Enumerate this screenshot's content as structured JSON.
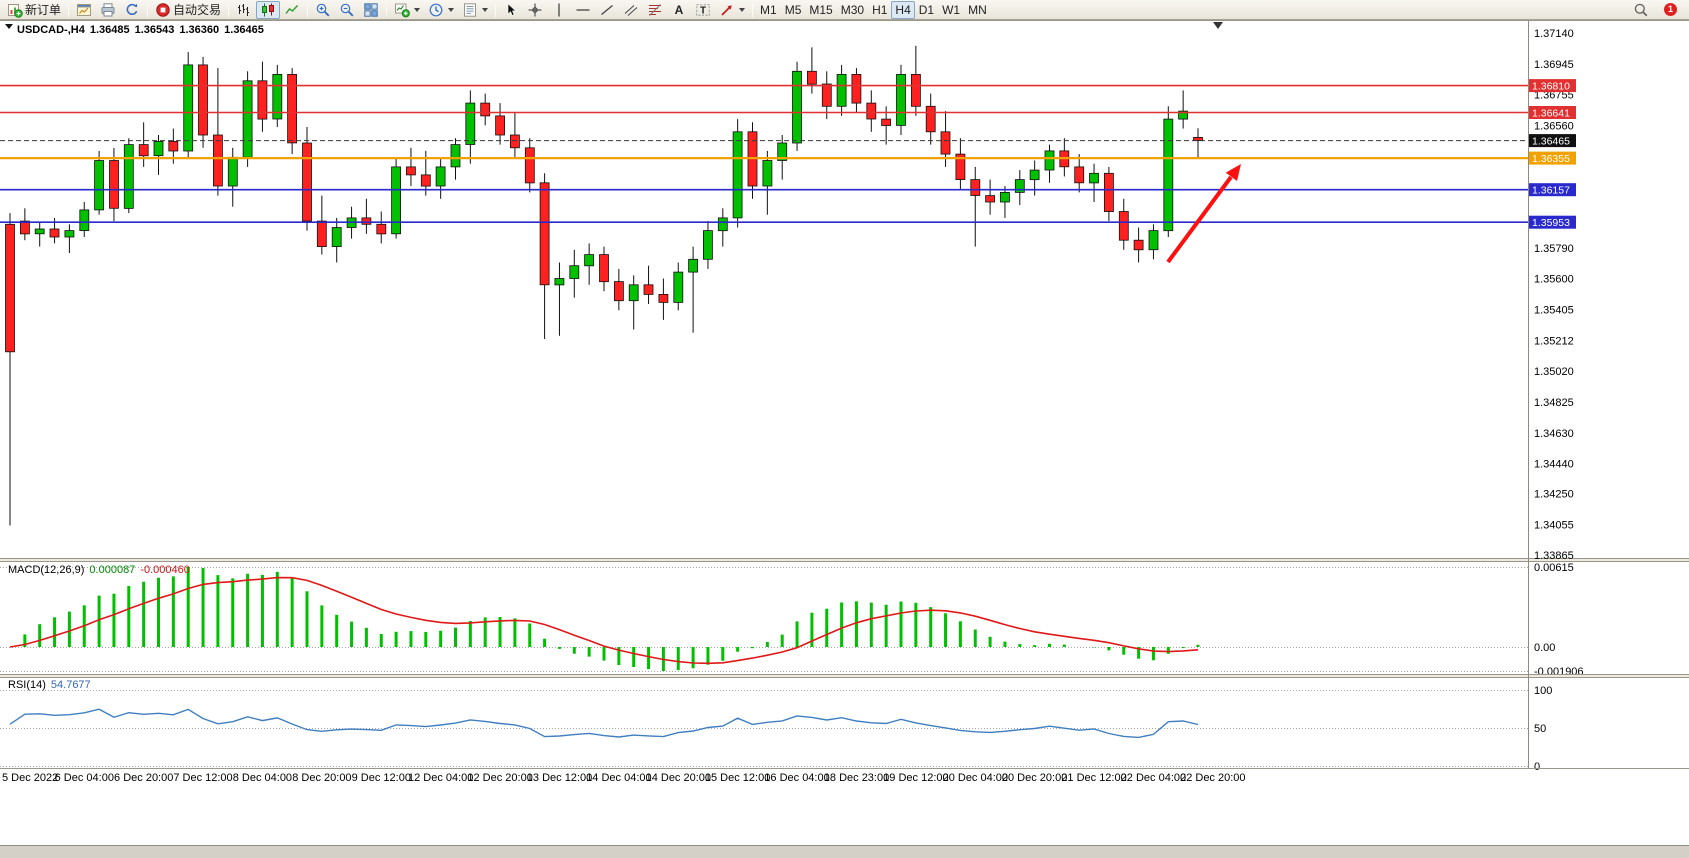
{
  "toolbar": {
    "left": [
      {
        "name": "new-order-button",
        "icon": "new-order",
        "label": "新订单"
      },
      {
        "type": "sep"
      },
      {
        "name": "charts-button",
        "icon": "charts"
      },
      {
        "name": "print-button",
        "icon": "print"
      },
      {
        "name": "refresh-button",
        "icon": "refresh"
      },
      {
        "type": "sep"
      },
      {
        "name": "autotrading-button",
        "icon": "autotrading",
        "label": "自动交易"
      },
      {
        "type": "sep"
      },
      {
        "name": "bar-chart-button",
        "icon": "bars"
      },
      {
        "name": "candlestick-chart-button",
        "icon": "candles",
        "active": true
      },
      {
        "name": "line-chart-button",
        "icon": "line"
      },
      {
        "type": "sep"
      },
      {
        "name": "zoom-in-button",
        "icon": "zoom-in"
      },
      {
        "name": "zoom-out-button",
        "icon": "zoom-out"
      },
      {
        "name": "tile-windows-button",
        "icon": "tile"
      },
      {
        "type": "sep"
      },
      {
        "name": "indicators-button",
        "icon": "indicators",
        "caret": true
      },
      {
        "name": "periods-button",
        "icon": "clock",
        "caret": true
      },
      {
        "name": "templates-button",
        "icon": "template",
        "caret": true
      },
      {
        "type": "sep"
      },
      {
        "name": "cursor-button",
        "icon": "cursor"
      },
      {
        "name": "crosshair-button",
        "icon": "crosshair"
      },
      {
        "name": "vertical-line-button",
        "icon": "vline"
      },
      {
        "name": "horizontal-line-button",
        "icon": "hline"
      },
      {
        "name": "trendline-button",
        "icon": "trendline"
      },
      {
        "name": "equidistant-channel-button",
        "icon": "channel"
      },
      {
        "name": "fibonacci-button",
        "icon": "fibo"
      },
      {
        "name": "text-button",
        "icon": "text"
      },
      {
        "name": "text-label-button",
        "icon": "label"
      },
      {
        "name": "arrows-button",
        "icon": "arrows",
        "caret": true
      },
      {
        "type": "sep"
      },
      {
        "name": "timeframe-m1",
        "label": "M1"
      },
      {
        "name": "timeframe-m5",
        "label": "M5"
      },
      {
        "name": "timeframe-m15",
        "label": "M15"
      },
      {
        "name": "timeframe-m30",
        "label": "M30"
      },
      {
        "name": "timeframe-h1",
        "label": "H1"
      },
      {
        "name": "timeframe-h4",
        "label": "H4",
        "active": true
      },
      {
        "name": "timeframe-d1",
        "label": "D1"
      },
      {
        "name": "timeframe-w1",
        "label": "W1"
      },
      {
        "name": "timeframe-mn",
        "label": "MN"
      }
    ],
    "right": [
      {
        "name": "search-button",
        "icon": "magnifier"
      },
      {
        "name": "notification-badge",
        "badge": "1"
      }
    ]
  },
  "chart": {
    "header": {
      "symbol": "USDCAD-,H4",
      "open": "1.36485",
      "high": "1.36543",
      "low": "1.36360",
      "close": "1.36465"
    },
    "price_axis_labels": [
      "1.37140",
      "1.36945",
      "1.36755",
      "1.36560",
      "1.35790",
      "1.35600",
      "1.35405",
      "1.35212",
      "1.35020",
      "1.34825",
      "1.34630",
      "1.34440",
      "1.34250",
      "1.34055",
      "1.33865"
    ],
    "price_tags": [
      {
        "name": "resistance-line-1",
        "label": "1.36810",
        "bg": "#e03030",
        "line_color": "#e03030",
        "line_width": 1.6
      },
      {
        "name": "resistance-line-2",
        "label": "1.36641",
        "bg": "#e03030",
        "line_color": "#e03030",
        "line_width": 1.6
      },
      {
        "name": "current-price-line",
        "label": "1.36465",
        "bg": "#101010",
        "line_color": "#3a3a3a",
        "line_width": 1,
        "dashed": true
      },
      {
        "name": "pivot-line",
        "label": "1.36355",
        "bg": "#f2a200",
        "line_color": "#f2a200",
        "line_width": 2.2
      },
      {
        "name": "support-line-1",
        "label": "1.36157",
        "bg": "#2929cc",
        "line_color": "#2929cc",
        "line_width": 1.6
      },
      {
        "name": "support-line-2",
        "label": "1.35953",
        "bg": "#2929cc",
        "line_color": "#2929cc",
        "line_width": 1.6
      }
    ],
    "time_axis_labels": [
      "5 Dec 2022",
      "6 Dec 04:00",
      "6 Dec 20:00",
      "7 Dec 12:00",
      "8 Dec 04:00",
      "8 Dec 20:00",
      "9 Dec 12:00",
      "12 Dec 04:00",
      "12 Dec 20:00",
      "13 Dec 12:00",
      "14 Dec 04:00",
      "14 Dec 20:00",
      "15 Dec 12:00",
      "16 Dec 04:00",
      "18 Dec 23:00",
      "19 Dec 12:00",
      "20 Dec 04:00",
      "20 Dec 20:00",
      "21 Dec 12:00",
      "22 Dec 04:00",
      "22 Dec 20:00"
    ],
    "candles": {
      "up_color": "#00c000",
      "down_color": "#ff2020",
      "outline": "#111111",
      "data": [
        [
          1.3594,
          1.3601,
          1.3405,
          1.3514
        ],
        [
          1.3596,
          1.3604,
          1.3584,
          1.3588
        ],
        [
          1.3588,
          1.3595,
          1.358,
          1.3591
        ],
        [
          1.3591,
          1.3598,
          1.3582,
          1.3586
        ],
        [
          1.3586,
          1.3594,
          1.3576,
          1.359
        ],
        [
          1.359,
          1.3608,
          1.3586,
          1.3603
        ],
        [
          1.3603,
          1.364,
          1.36,
          1.3634
        ],
        [
          1.3634,
          1.3642,
          1.3596,
          1.3604
        ],
        [
          1.3604,
          1.3648,
          1.3601,
          1.3644
        ],
        [
          1.3644,
          1.3658,
          1.363,
          1.3637
        ],
        [
          1.3637,
          1.365,
          1.3625,
          1.3646
        ],
        [
          1.3646,
          1.3654,
          1.3632,
          1.364
        ],
        [
          1.364,
          1.3702,
          1.3636,
          1.3694
        ],
        [
          1.3694,
          1.3699,
          1.3642,
          1.365
        ],
        [
          1.365,
          1.3692,
          1.3612,
          1.3618
        ],
        [
          1.3618,
          1.3642,
          1.3605,
          1.3636
        ],
        [
          1.3636,
          1.369,
          1.363,
          1.3684
        ],
        [
          1.3684,
          1.3696,
          1.3652,
          1.366
        ],
        [
          1.366,
          1.3694,
          1.3655,
          1.3688
        ],
        [
          1.3688,
          1.3692,
          1.3638,
          1.3645
        ],
        [
          1.3645,
          1.3655,
          1.359,
          1.3596
        ],
        [
          1.3596,
          1.3612,
          1.3575,
          1.358
        ],
        [
          1.358,
          1.3598,
          1.357,
          1.3592
        ],
        [
          1.3592,
          1.3605,
          1.3585,
          1.3598
        ],
        [
          1.3598,
          1.361,
          1.3588,
          1.3594
        ],
        [
          1.3594,
          1.3602,
          1.3582,
          1.3588
        ],
        [
          1.3588,
          1.3636,
          1.3585,
          1.363
        ],
        [
          1.363,
          1.3642,
          1.3618,
          1.3625
        ],
        [
          1.3625,
          1.364,
          1.3612,
          1.3618
        ],
        [
          1.3618,
          1.3635,
          1.361,
          1.363
        ],
        [
          1.363,
          1.3648,
          1.3622,
          1.3644
        ],
        [
          1.3644,
          1.3678,
          1.3632,
          1.367
        ],
        [
          1.367,
          1.3676,
          1.3656,
          1.3662
        ],
        [
          1.3662,
          1.367,
          1.3644,
          1.365
        ],
        [
          1.365,
          1.3664,
          1.3636,
          1.3642
        ],
        [
          1.3642,
          1.3648,
          1.3614,
          1.362
        ],
        [
          1.362,
          1.3626,
          1.3522,
          1.3556
        ],
        [
          1.3556,
          1.357,
          1.3524,
          1.356
        ],
        [
          1.356,
          1.3578,
          1.3548,
          1.3568
        ],
        [
          1.3568,
          1.3582,
          1.3556,
          1.3575
        ],
        [
          1.3575,
          1.358,
          1.3552,
          1.3558
        ],
        [
          1.3558,
          1.3566,
          1.354,
          1.3546
        ],
        [
          1.3546,
          1.3562,
          1.3528,
          1.3556
        ],
        [
          1.3556,
          1.3568,
          1.3544,
          1.355
        ],
        [
          1.355,
          1.356,
          1.3534,
          1.3545
        ],
        [
          1.3545,
          1.357,
          1.354,
          1.3564
        ],
        [
          1.3564,
          1.358,
          1.3526,
          1.3572
        ],
        [
          1.3572,
          1.3596,
          1.3566,
          1.359
        ],
        [
          1.359,
          1.3604,
          1.358,
          1.3598
        ],
        [
          1.3598,
          1.366,
          1.3592,
          1.3652
        ],
        [
          1.3652,
          1.3658,
          1.361,
          1.3618
        ],
        [
          1.3618,
          1.364,
          1.36,
          1.3634
        ],
        [
          1.3634,
          1.365,
          1.3622,
          1.3645
        ],
        [
          1.3645,
          1.3696,
          1.364,
          1.369
        ],
        [
          1.369,
          1.3705,
          1.3676,
          1.3682
        ],
        [
          1.3682,
          1.369,
          1.366,
          1.3668
        ],
        [
          1.3668,
          1.3694,
          1.3662,
          1.3688
        ],
        [
          1.3688,
          1.3692,
          1.3664,
          1.367
        ],
        [
          1.367,
          1.3678,
          1.3652,
          1.366
        ],
        [
          1.366,
          1.3668,
          1.3644,
          1.3656
        ],
        [
          1.3656,
          1.3694,
          1.365,
          1.3688
        ],
        [
          1.3688,
          1.3706,
          1.3662,
          1.3668
        ],
        [
          1.3668,
          1.3676,
          1.3644,
          1.3652
        ],
        [
          1.3652,
          1.3665,
          1.363,
          1.3638
        ],
        [
          1.3638,
          1.3648,
          1.3616,
          1.3622
        ],
        [
          1.3622,
          1.363,
          1.358,
          1.3612
        ],
        [
          1.3612,
          1.3622,
          1.36,
          1.3608
        ],
        [
          1.3608,
          1.3618,
          1.3598,
          1.3614
        ],
        [
          1.3614,
          1.3628,
          1.3606,
          1.3622
        ],
        [
          1.3622,
          1.3634,
          1.3612,
          1.3628
        ],
        [
          1.3628,
          1.3644,
          1.362,
          1.364
        ],
        [
          1.364,
          1.3648,
          1.3624,
          1.363
        ],
        [
          1.363,
          1.3638,
          1.3614,
          1.362
        ],
        [
          1.362,
          1.3632,
          1.3608,
          1.3626
        ],
        [
          1.3626,
          1.363,
          1.3596,
          1.3602
        ],
        [
          1.3602,
          1.361,
          1.3578,
          1.3584
        ],
        [
          1.3584,
          1.3592,
          1.357,
          1.3578
        ],
        [
          1.3578,
          1.3594,
          1.3572,
          1.359
        ],
        [
          1.359,
          1.3668,
          1.3586,
          1.366
        ],
        [
          1.366,
          1.3678,
          1.3654,
          1.3665
        ],
        [
          1.36485,
          1.36543,
          1.3636,
          1.36465
        ]
      ]
    },
    "arrow_annotation": {
      "color": "#ff1010"
    }
  },
  "macd": {
    "title": "MACD(12,26,9)",
    "value_main": "0.000087",
    "value_signal": "-0.000460",
    "axis_labels": [
      "0.00615",
      "0.00",
      "-0.001906"
    ],
    "fast": 12,
    "slow": 26,
    "signal": 9,
    "histogram_color": "#00c000",
    "signal_color": "#e01818"
  },
  "rsi": {
    "title": "RSI(14)",
    "value": "54.7677",
    "period": 14,
    "axis_labels": [
      "100",
      "50",
      "0"
    ],
    "line_color": "#3f7fc1"
  }
}
